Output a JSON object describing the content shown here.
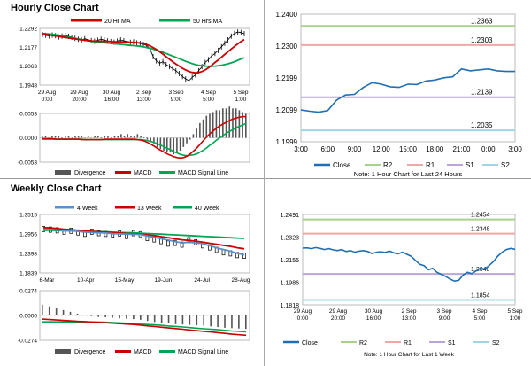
{
  "sections": {
    "hourly_title": "Hourly Close Chart",
    "weekly_title": "Weekly Close Chart"
  },
  "chart_data": [
    {
      "id": "hourly-price",
      "type": "line",
      "legend": [
        "20 Hr MA",
        "50 Hrs MA"
      ],
      "colors": {
        "price": "#000000",
        "ma20": "#cc0000",
        "ma50": "#00a651"
      },
      "yticks": [
        "1.2292",
        "1.2177",
        "1.2063",
        "1.1948"
      ],
      "ylim": [
        1.1948,
        1.2292
      ],
      "xticks": [
        [
          "29 Aug",
          "0:00"
        ],
        [
          "29 Aug",
          "20:00"
        ],
        [
          "30 Aug",
          "16:00"
        ],
        [
          "2 Sep",
          "13:00"
        ],
        [
          "3 Sep",
          "9:00"
        ],
        [
          "4 Sep",
          "5:00"
        ],
        [
          "5 Sep",
          "1:00"
        ]
      ],
      "price": [
        1.2255,
        1.225,
        1.2246,
        1.2252,
        1.2248,
        1.224,
        1.2245,
        1.225,
        1.2244,
        1.2238,
        1.2232,
        1.2226,
        1.2221,
        1.2229,
        1.2223,
        1.2218,
        1.2214,
        1.222,
        1.2226,
        1.2221,
        1.2216,
        1.2212,
        1.2208,
        1.2215,
        1.2222,
        1.2217,
        1.2213,
        1.2207,
        1.221,
        1.2204,
        1.22,
        1.2195,
        1.2188,
        1.217,
        1.212,
        1.2095,
        1.208,
        1.209,
        1.2072,
        1.206,
        1.2048,
        1.2035,
        1.2018,
        1.2,
        1.1985,
        1.1975,
        1.1995,
        1.201,
        1.2035,
        1.206,
        1.2085,
        1.2102,
        1.2125,
        1.214,
        1.2158,
        1.218,
        1.2202,
        1.2222,
        1.2245,
        1.2262,
        1.227,
        1.2267,
        1.226
      ],
      "ma20": [
        1.2258,
        1.2255,
        1.2252,
        1.2249,
        1.2246,
        1.2243,
        1.224,
        1.2237,
        1.2234,
        1.2231,
        1.2228,
        1.2225,
        1.2222,
        1.222,
        1.2218,
        1.2216,
        1.2215,
        1.2214,
        1.2214,
        1.2214,
        1.2213,
        1.2212,
        1.2211,
        1.2211,
        1.2211,
        1.221,
        1.2209,
        1.2208,
        1.2207,
        1.2206,
        1.2204,
        1.22,
        1.2194,
        1.2186,
        1.2176,
        1.2164,
        1.215,
        1.2136,
        1.212,
        1.2105,
        1.209,
        1.2076,
        1.2063,
        1.205,
        1.204,
        1.203,
        1.2025,
        1.2022,
        1.2024,
        1.203,
        1.204,
        1.2053,
        1.2068,
        1.2085,
        1.21,
        1.2117,
        1.2134,
        1.215,
        1.2167,
        1.2183,
        1.2198,
        1.2212,
        1.2224
      ],
      "ma50": [
        1.2262,
        1.226,
        1.2258,
        1.2256,
        1.2253,
        1.225,
        1.2247,
        1.2244,
        1.224,
        1.2236,
        1.2232,
        1.2228,
        1.2224,
        1.222,
        1.2217,
        1.2214,
        1.2211,
        1.2209,
        1.2207,
        1.2205,
        1.2203,
        1.2201,
        1.2199,
        1.2197,
        1.2195,
        1.2193,
        1.2191,
        1.2189,
        1.2187,
        1.2185,
        1.2183,
        1.218,
        1.2176,
        1.2171,
        1.2166,
        1.216,
        1.2154,
        1.2147,
        1.214,
        1.2132,
        1.2124,
        1.2116,
        1.2108,
        1.21,
        1.2092,
        1.2085,
        1.2078,
        1.2072,
        1.2068,
        1.2065,
        1.2063,
        1.2062,
        1.2062,
        1.2063,
        1.2065,
        1.2068,
        1.2072,
        1.2077,
        1.2083,
        1.209,
        1.2098,
        1.2106,
        1.2114
      ]
    },
    {
      "id": "hourly-macd",
      "type": "bar",
      "legend": [
        "Divergence",
        "MACD",
        "MACD Signal Line"
      ],
      "colors": {
        "divergence": "#555555",
        "macd": "#cc0000",
        "signal": "#00a651"
      },
      "yticks": [
        "0.0053",
        "0.0000",
        "-0.0053"
      ],
      "ylim": [
        -0.0053,
        0.0053
      ],
      "divergence": [
        0.0001,
        0.0001,
        0.0,
        0.0001,
        0.0001,
        0.0001,
        0.0,
        0.0001,
        0.0001,
        0.0,
        0.0001,
        0.0001,
        0.0001,
        0.0,
        0.0001,
        0.0,
        0.0001,
        0.0001,
        0.0,
        0.0001,
        0.0001,
        0.0,
        0.0001,
        0.0001,
        0.0002,
        0.0001,
        0.0002,
        0.0001,
        0.0001,
        0.0002,
        0.0001,
        0.0,
        -0.0001,
        -0.0002,
        -0.0003,
        -0.0005,
        -0.0006,
        -0.0007,
        -0.0008,
        -0.0008,
        -0.0009,
        -0.0008,
        -0.0007,
        -0.0005,
        -0.0003,
        -0.0001,
        0.0002,
        0.0005,
        0.0008,
        0.001,
        0.0012,
        0.0013,
        0.0014,
        0.0015,
        0.0015,
        0.0016,
        0.0016,
        0.0017,
        0.0016,
        0.0016,
        0.0015,
        0.0014,
        0.0013
      ],
      "macd": [
        -0.0002,
        -0.0002,
        -0.0002,
        -0.0002,
        -0.0003,
        -0.0003,
        -0.0003,
        -0.0003,
        -0.0003,
        -0.0003,
        -0.0003,
        -0.0003,
        -0.0004,
        -0.0004,
        -0.0004,
        -0.0004,
        -0.0004,
        -0.0004,
        -0.0004,
        -0.0003,
        -0.0003,
        -0.0003,
        -0.0003,
        -0.0003,
        -0.0003,
        -0.0003,
        -0.0003,
        -0.0003,
        -0.0003,
        -0.0004,
        -0.0005,
        -0.0007,
        -0.001,
        -0.0014,
        -0.0018,
        -0.0023,
        -0.0027,
        -0.0031,
        -0.0035,
        -0.0038,
        -0.0041,
        -0.0043,
        -0.0044,
        -0.0043,
        -0.004,
        -0.0035,
        -0.0029,
        -0.0022,
        -0.0014,
        -0.0006,
        0.0002,
        0.0009,
        0.0015,
        0.0021,
        0.0026,
        0.003,
        0.0034,
        0.0038,
        0.0041,
        0.0043,
        0.0045,
        0.0046,
        0.0046
      ],
      "signal": [
        -0.0003,
        -0.0003,
        -0.0003,
        -0.0003,
        -0.0003,
        -0.0003,
        -0.0003,
        -0.0003,
        -0.0003,
        -0.0003,
        -0.0003,
        -0.0003,
        -0.0003,
        -0.0004,
        -0.0004,
        -0.0004,
        -0.0004,
        -0.0004,
        -0.0004,
        -0.0004,
        -0.0004,
        -0.0004,
        -0.0004,
        -0.0004,
        -0.0004,
        -0.0004,
        -0.0004,
        -0.0004,
        -0.0004,
        -0.0004,
        -0.0004,
        -0.0005,
        -0.0006,
        -0.0008,
        -0.001,
        -0.0013,
        -0.0016,
        -0.0019,
        -0.0023,
        -0.0026,
        -0.003,
        -0.0033,
        -0.0036,
        -0.0038,
        -0.0039,
        -0.0038,
        -0.0037,
        -0.0035,
        -0.0031,
        -0.0027,
        -0.0022,
        -0.0016,
        -0.0011,
        -0.0005,
        0.0,
        0.0005,
        0.001,
        0.0014,
        0.0018,
        0.0022,
        0.0025,
        0.0028,
        0.0031
      ]
    },
    {
      "id": "hourly-pivot",
      "type": "line",
      "colors": {
        "close": "#1f6fb2",
        "r2": "#a8d18d",
        "r1": "#f2a7a7",
        "s1": "#b9a6d6",
        "s2": "#9ed6e6"
      },
      "yticks": [
        "1.2400",
        "1.2300",
        "1.2199",
        "1.2099",
        "1.1999"
      ],
      "ylim": [
        1.1999,
        1.24
      ],
      "xticks": [
        "3:00",
        "6:00",
        "9:00",
        "12:00",
        "15:00",
        "18:00",
        "21:00",
        "0:00",
        "3:00"
      ],
      "x": [
        "3:00",
        "4:00",
        "5:00",
        "6:00",
        "7:00",
        "8:00",
        "9:00",
        "10:00",
        "11:00",
        "12:00",
        "13:00",
        "14:00",
        "15:00",
        "16:00",
        "17:00",
        "18:00",
        "19:00",
        "20:00",
        "21:00",
        "22:00",
        "23:00",
        "0:00",
        "1:00",
        "2:00",
        "3:00"
      ],
      "close": [
        1.2099,
        1.2095,
        1.2092,
        1.2097,
        1.213,
        1.2146,
        1.2148,
        1.217,
        1.2185,
        1.218,
        1.2172,
        1.217,
        1.218,
        1.2179,
        1.219,
        1.2193,
        1.22,
        1.2203,
        1.2228,
        1.2222,
        1.2225,
        1.2228,
        1.2222,
        1.222,
        1.222
      ],
      "levels": {
        "R2": 1.2363,
        "R1": 1.2303,
        "S1": 1.2139,
        "S2": 1.2035
      },
      "labels": {
        "R2": "1.2363",
        "R1": "1.2303",
        "S1": "1.2139",
        "S2": "1.2035"
      },
      "legend": [
        "Close",
        "R2",
        "R1",
        "S1",
        "S2"
      ],
      "note": "Note: 1 Hour Chart for Last 24 Hours"
    },
    {
      "id": "weekly-price",
      "type": "line",
      "legend": [
        "4 Week",
        "13 Week",
        "40 Week"
      ],
      "colors": {
        "price": "#000000",
        "w4": "#5b8fc9",
        "w13": "#cc0000",
        "w40": "#00a651"
      },
      "yticks": [
        "1.3515",
        "1.2956",
        "1.2398",
        "1.1839"
      ],
      "ylim": [
        1.1839,
        1.3515
      ],
      "xticks": [
        "6-Mar",
        "10-Apr",
        "15-May",
        "19-Jun",
        "24-Jul",
        "28-Aug"
      ],
      "price": [
        1.31,
        1.308,
        1.306,
        1.302,
        1.305,
        1.3,
        1.296,
        1.302,
        1.298,
        1.296,
        1.294,
        1.297,
        1.29,
        1.298,
        1.295,
        1.284,
        1.28,
        1.275,
        1.268,
        1.27,
        1.265,
        1.278,
        1.272,
        1.263,
        1.257,
        1.25,
        1.243,
        1.24,
        1.235,
        1.233
      ],
      "w4": [
        1.309,
        1.308,
        1.307,
        1.305,
        1.305,
        1.303,
        1.301,
        1.3,
        1.299,
        1.2985,
        1.2965,
        1.296,
        1.295,
        1.2945,
        1.294,
        1.29,
        1.286,
        1.282,
        1.278,
        1.274,
        1.27,
        1.272,
        1.27,
        1.268,
        1.262,
        1.256,
        1.251,
        1.246,
        1.24,
        1.236
      ],
      "w13": [
        1.314,
        1.313,
        1.311,
        1.309,
        1.308,
        1.306,
        1.304,
        1.303,
        1.302,
        1.301,
        1.2995,
        1.2985,
        1.297,
        1.296,
        1.295,
        1.293,
        1.291,
        1.288,
        1.285,
        1.282,
        1.279,
        1.277,
        1.275,
        1.272,
        1.269,
        1.266,
        1.263,
        1.26,
        1.256,
        1.253
      ],
      "w40": [
        1.306,
        1.306,
        1.3055,
        1.305,
        1.3045,
        1.304,
        1.3035,
        1.303,
        1.3025,
        1.302,
        1.301,
        1.3,
        1.2995,
        1.299,
        1.298,
        1.297,
        1.296,
        1.295,
        1.294,
        1.293,
        1.292,
        1.291,
        1.29,
        1.289,
        1.288,
        1.287,
        1.286,
        1.285,
        1.284,
        1.283
      ]
    },
    {
      "id": "weekly-macd",
      "type": "bar",
      "legend": [
        "Divergence",
        "MACD",
        "MACD Signal Line"
      ],
      "colors": {
        "divergence": "#555555",
        "macd": "#cc0000",
        "signal": "#00a651"
      },
      "yticks": [
        "0.0274",
        "0.0000",
        "-0.0274"
      ],
      "ylim": [
        -0.0274,
        0.0274
      ],
      "divergence": [
        0.003,
        0.0025,
        0.002,
        0.0015,
        0.001,
        0.0005,
        0.0002,
        -0.0001,
        -0.0004,
        -0.0005,
        -0.0006,
        -0.0008,
        -0.0009,
        -0.001,
        -0.0012,
        -0.0015,
        -0.0018,
        -0.002,
        -0.0022,
        -0.0024,
        -0.0025,
        -0.0026,
        -0.0027,
        -0.0028,
        -0.003,
        -0.0032,
        -0.0034,
        -0.0035,
        -0.0036,
        -0.0037
      ],
      "macd": [
        -0.004,
        -0.0045,
        -0.005,
        -0.0055,
        -0.006,
        -0.0065,
        -0.0068,
        -0.0072,
        -0.0076,
        -0.008,
        -0.0085,
        -0.009,
        -0.0095,
        -0.01,
        -0.0108,
        -0.0115,
        -0.0122,
        -0.013,
        -0.0138,
        -0.0145,
        -0.0152,
        -0.016,
        -0.0168,
        -0.0175,
        -0.0182,
        -0.019,
        -0.0198,
        -0.0206,
        -0.0212,
        -0.0218
      ],
      "signal": [
        -0.007,
        -0.007,
        -0.007,
        -0.007,
        -0.007,
        -0.007,
        -0.007,
        -0.0071,
        -0.0072,
        -0.0075,
        -0.0079,
        -0.0082,
        -0.0086,
        -0.009,
        -0.0096,
        -0.01,
        -0.0104,
        -0.011,
        -0.0116,
        -0.0121,
        -0.0127,
        -0.0134,
        -0.0141,
        -0.0147,
        -0.0152,
        -0.0158,
        -0.0164,
        -0.0171,
        -0.0176,
        -0.0181
      ]
    },
    {
      "id": "weekly-pivot",
      "type": "line",
      "colors": {
        "close": "#1f6fb2",
        "r2": "#a8d18d",
        "r1": "#f2a7a7",
        "s1": "#b9a6d6",
        "s2": "#9ed6e6"
      },
      "yticks": [
        "1.2491",
        "1.2323",
        "1.2155",
        "1.1986",
        "1.1818"
      ],
      "ylim": [
        1.1818,
        1.2491
      ],
      "xticks": [
        [
          "29 Aug",
          "0:00"
        ],
        [
          "29 Aug",
          "20:00"
        ],
        [
          "30 Aug",
          "16:00"
        ],
        [
          "2 Sep",
          "13:00"
        ],
        [
          "3 Sep",
          "9:00"
        ],
        [
          "4 Sep",
          "5:00"
        ],
        [
          "5 Sep",
          "1:00"
        ]
      ],
      "close": [
        1.224,
        1.2242,
        1.2236,
        1.2244,
        1.2238,
        1.223,
        1.2236,
        1.2228,
        1.2222,
        1.223,
        1.2215,
        1.2222,
        1.221,
        1.2218,
        1.2222,
        1.2215,
        1.22,
        1.221,
        1.2214,
        1.2208,
        1.2218,
        1.2205,
        1.2198,
        1.221,
        1.2195,
        1.218,
        1.215,
        1.212,
        1.211,
        1.208,
        1.209,
        1.206,
        1.2045,
        1.203,
        1.201,
        1.1995,
        1.2,
        1.204,
        1.206,
        1.205,
        1.207,
        1.209,
        1.2085,
        1.211,
        1.214,
        1.218,
        1.221,
        1.223,
        1.2238,
        1.2232
      ],
      "levels": {
        "R2": 1.2454,
        "R1": 1.2348,
        "S1": 1.2048,
        "S2": 1.1854
      },
      "labels": {
        "R2": "1.2454",
        "R1": "1.2348",
        "S1": "1.2048",
        "S2": "1.1854"
      },
      "legend": [
        "Close",
        "R2",
        "R1",
        "S1",
        "S2"
      ],
      "note": "Note: 1 Hour Chart for Last 1 Week"
    }
  ]
}
